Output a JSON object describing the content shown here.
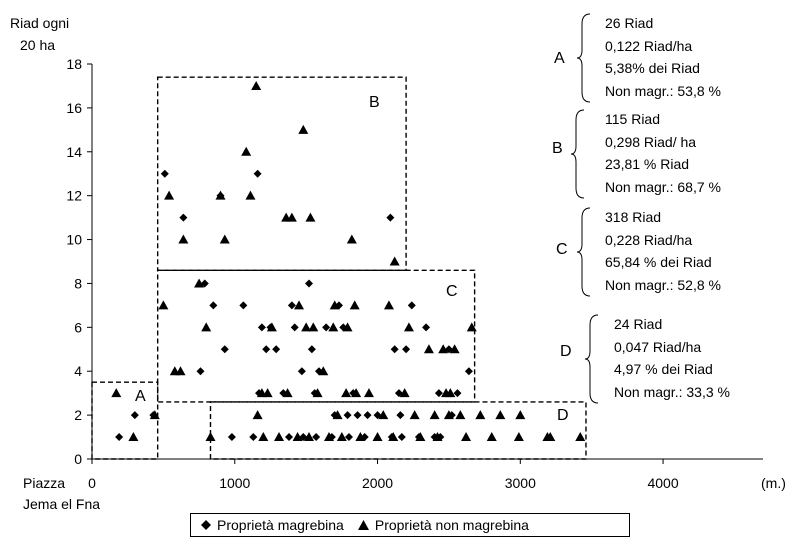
{
  "chart_data": {
    "type": "scatter",
    "title": "",
    "ylabel": "Riad ogni 20 ha",
    "ylabel_lines": [
      "Riad ogni",
      "20 ha"
    ],
    "xlabel_lines": [
      "Piazza",
      "Jema el Fna"
    ],
    "x_unit": "(m.)",
    "xlim": [
      0,
      4700
    ],
    "ylim": [
      0,
      18
    ],
    "xticks": [
      "0",
      "1000",
      "2000",
      "3000",
      "4000"
    ],
    "xtick_values": [
      0,
      1000,
      2000,
      3000,
      4000
    ],
    "yticks": [
      "0",
      "2",
      "4",
      "6",
      "8",
      "10",
      "12",
      "14",
      "16",
      "18"
    ],
    "ytick_values": [
      0,
      2,
      4,
      6,
      8,
      10,
      12,
      14,
      16,
      18
    ],
    "grid": false,
    "legend_position": "bottom",
    "series": [
      {
        "name": "Proprietà magrebina",
        "marker": "diamond",
        "points": [
          [
            190,
            1
          ],
          [
            300,
            2
          ],
          [
            430,
            2
          ],
          [
            510,
            13
          ],
          [
            640,
            11
          ],
          [
            760,
            4
          ],
          [
            790,
            8
          ],
          [
            850,
            7
          ],
          [
            900,
            12
          ],
          [
            930,
            5
          ],
          [
            980,
            1
          ],
          [
            1060,
            7
          ],
          [
            1130,
            1
          ],
          [
            1160,
            13
          ],
          [
            1170,
            3
          ],
          [
            1190,
            6
          ],
          [
            1220,
            5
          ],
          [
            1250,
            6
          ],
          [
            1290,
            5
          ],
          [
            1340,
            3
          ],
          [
            1380,
            1
          ],
          [
            1400,
            7
          ],
          [
            1420,
            6
          ],
          [
            1470,
            4
          ],
          [
            1480,
            1
          ],
          [
            1520,
            8
          ],
          [
            1540,
            5
          ],
          [
            1560,
            3
          ],
          [
            1570,
            1
          ],
          [
            1590,
            4
          ],
          [
            1640,
            6
          ],
          [
            1680,
            1
          ],
          [
            1700,
            2
          ],
          [
            1730,
            7
          ],
          [
            1760,
            6
          ],
          [
            1790,
            2
          ],
          [
            1800,
            1
          ],
          [
            1830,
            3
          ],
          [
            1860,
            2
          ],
          [
            1910,
            1
          ],
          [
            1930,
            2
          ],
          [
            2000,
            2
          ],
          [
            2090,
            11
          ],
          [
            2100,
            1
          ],
          [
            2120,
            5
          ],
          [
            2150,
            3
          ],
          [
            2160,
            2
          ],
          [
            2170,
            1
          ],
          [
            2200,
            5
          ],
          [
            2240,
            7
          ],
          [
            2290,
            1
          ],
          [
            2340,
            6
          ],
          [
            2400,
            1
          ],
          [
            2430,
            3
          ],
          [
            2440,
            1
          ],
          [
            2500,
            5
          ],
          [
            2520,
            2
          ],
          [
            2560,
            3
          ],
          [
            2640,
            4
          ]
        ]
      },
      {
        "name": "Proprietà non magrebina",
        "marker": "triangle",
        "points": [
          [
            170,
            3
          ],
          [
            290,
            1
          ],
          [
            440,
            2
          ],
          [
            500,
            7
          ],
          [
            540,
            12
          ],
          [
            580,
            4
          ],
          [
            620,
            4
          ],
          [
            640,
            10
          ],
          [
            750,
            8
          ],
          [
            800,
            6
          ],
          [
            830,
            1
          ],
          [
            900,
            12
          ],
          [
            930,
            10
          ],
          [
            1080,
            14
          ],
          [
            1110,
            12
          ],
          [
            1150,
            17
          ],
          [
            1160,
            2
          ],
          [
            1190,
            3
          ],
          [
            1200,
            1
          ],
          [
            1230,
            3
          ],
          [
            1260,
            6
          ],
          [
            1310,
            1
          ],
          [
            1360,
            11
          ],
          [
            1370,
            3
          ],
          [
            1400,
            11
          ],
          [
            1440,
            1
          ],
          [
            1450,
            7
          ],
          [
            1480,
            15
          ],
          [
            1500,
            6
          ],
          [
            1520,
            1
          ],
          [
            1530,
            11
          ],
          [
            1550,
            6
          ],
          [
            1580,
            3
          ],
          [
            1620,
            4
          ],
          [
            1660,
            1
          ],
          [
            1690,
            6
          ],
          [
            1700,
            7
          ],
          [
            1720,
            2
          ],
          [
            1750,
            1
          ],
          [
            1780,
            3
          ],
          [
            1790,
            6
          ],
          [
            1820,
            10
          ],
          [
            1840,
            7
          ],
          [
            1850,
            3
          ],
          [
            1880,
            1
          ],
          [
            1940,
            3
          ],
          [
            2000,
            1
          ],
          [
            2040,
            2
          ],
          [
            2080,
            7
          ],
          [
            2110,
            1
          ],
          [
            2120,
            9
          ],
          [
            2190,
            3
          ],
          [
            2220,
            6
          ],
          [
            2260,
            2
          ],
          [
            2300,
            1
          ],
          [
            2360,
            5
          ],
          [
            2400,
            2
          ],
          [
            2420,
            1
          ],
          [
            2460,
            5
          ],
          [
            2480,
            3
          ],
          [
            2500,
            2
          ],
          [
            2510,
            3
          ],
          [
            2540,
            5
          ],
          [
            2580,
            2
          ],
          [
            2620,
            1
          ],
          [
            2660,
            6
          ],
          [
            2720,
            2
          ],
          [
            2800,
            1
          ],
          [
            2860,
            2
          ],
          [
            2990,
            1
          ],
          [
            3000,
            2
          ],
          [
            3190,
            1
          ],
          [
            3210,
            1
          ],
          [
            3420,
            1
          ]
        ]
      }
    ],
    "zones": [
      {
        "label": "A",
        "x_range": [
          0,
          460
        ],
        "y_range": [
          0,
          3.5
        ]
      },
      {
        "label": "B",
        "x_range": [
          460,
          2200
        ],
        "y_range": [
          8.6,
          17.4
        ]
      },
      {
        "label": "C",
        "x_range": [
          460,
          2680
        ],
        "y_range": [
          2.6,
          8.6
        ]
      },
      {
        "label": "D",
        "x_range": [
          830,
          3460
        ],
        "y_range": [
          0,
          2.6
        ]
      }
    ]
  },
  "annotations": [
    {
      "zone": "A",
      "lines": [
        "26 Riad",
        "0,122 Riad/ha",
        "5,38% dei Riad",
        "Non magr.: 53,8 %"
      ]
    },
    {
      "zone": "B",
      "lines": [
        "115 Riad",
        "0,298 Riad/ ha",
        "23,81 % Riad",
        "Non magr.: 68,7 %"
      ]
    },
    {
      "zone": "C",
      "lines": [
        "318 Riad",
        "0,228 Riad/ha",
        "65,84 % dei Riad",
        "Non magr.: 52,8 %"
      ]
    },
    {
      "zone": "D",
      "lines": [
        "24 Riad",
        "0,047 Riad/ha",
        "4,97 % dei Riad",
        "Non magr.: 33,3 %"
      ]
    }
  ],
  "legend": [
    {
      "label": "Proprietà magrebina",
      "icon": "diamond-icon"
    },
    {
      "label": "Proprietà non magrebina",
      "icon": "triangle-icon"
    }
  ]
}
